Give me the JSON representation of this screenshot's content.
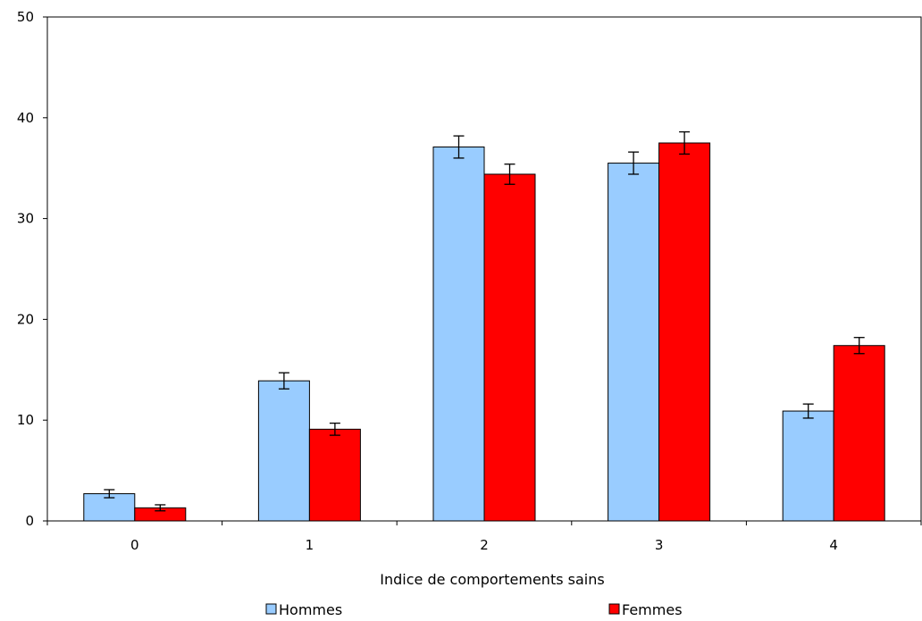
{
  "chart_data": {
    "type": "bar",
    "title": "",
    "xlabel": "Indice de comportements sains",
    "ylabel": "",
    "categories": [
      "0",
      "1",
      "2",
      "3",
      "4"
    ],
    "ylim": [
      0,
      50
    ],
    "yticks": [
      0,
      10,
      20,
      30,
      40,
      50
    ],
    "grid": false,
    "legend_position": "bottom",
    "series": [
      {
        "name": "Hommes",
        "color": "#99CCFF",
        "values": [
          2.7,
          13.9,
          37.1,
          35.5,
          10.9
        ],
        "error": [
          0.4,
          0.8,
          1.1,
          1.1,
          0.7
        ]
      },
      {
        "name": "Femmes",
        "color": "#FF0000",
        "values": [
          1.3,
          9.1,
          34.4,
          37.5,
          17.4
        ],
        "error": [
          0.3,
          0.6,
          1.0,
          1.1,
          0.8
        ]
      }
    ]
  }
}
